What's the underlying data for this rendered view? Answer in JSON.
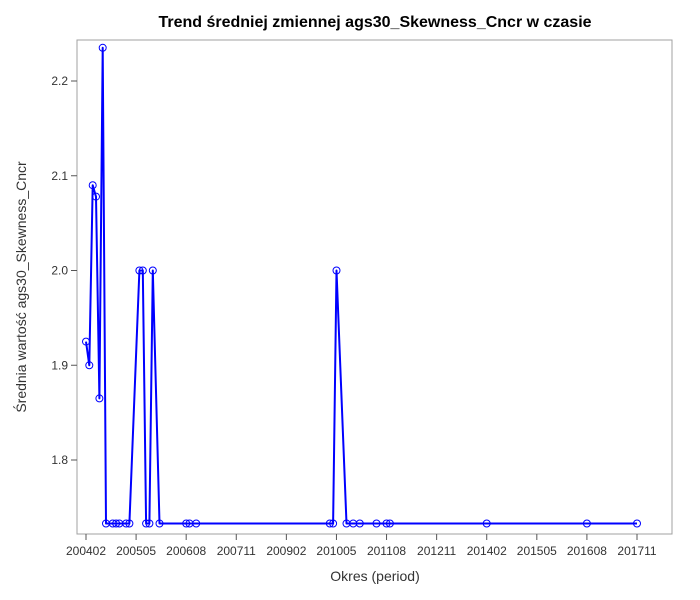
{
  "chart_data": {
    "type": "line",
    "title": "Trend średniej zmiennej ags30_Skewness_Cncr w czasie",
    "xlabel": "Okres (period)",
    "ylabel": "Średnia wartość ags30_Skewness_Cncr",
    "x_tick_labels": [
      "200402",
      "200505",
      "200608",
      "200711",
      "200902",
      "201005",
      "201108",
      "201211",
      "201402",
      "201505",
      "201608",
      "201711"
    ],
    "y_ticks": [
      1.8,
      1.9,
      2.0,
      2.1,
      2.2
    ],
    "y_tick_labels": [
      "1.8",
      "1.9",
      "2.0",
      "2.1",
      "2.2"
    ],
    "ylim": [
      1.733,
      2.27
    ],
    "grid": false,
    "legend": "none",
    "colors": {
      "line": "#0000ff",
      "marker": "#0000ff",
      "frame": "#a0a0a0",
      "tick": "#555555"
    },
    "series": [
      {
        "x": [
          "200402",
          "200403",
          "200404",
          "200405",
          "200406",
          "200407",
          "200408",
          "200410",
          "200411",
          "200412",
          "200502",
          "200503",
          "200506",
          "200507",
          "200508",
          "200509",
          "200510",
          "200512",
          "200608",
          "200609",
          "200611",
          "201003",
          "201004",
          "201005",
          "201008",
          "201010",
          "201012",
          "201105",
          "201108",
          "201109",
          "201402",
          "201608",
          "201711"
        ],
        "y": [
          1.925,
          1.9,
          2.09,
          2.078,
          1.865,
          2.235,
          1.733,
          1.733,
          1.733,
          1.733,
          1.733,
          1.733,
          2.0,
          2.0,
          1.733,
          1.733,
          2.0,
          1.733,
          1.733,
          1.733,
          1.733,
          1.733,
          1.733,
          2.0,
          1.733,
          1.733,
          1.733,
          1.733,
          1.733,
          1.733,
          1.733,
          1.733,
          1.733
        ]
      }
    ]
  }
}
